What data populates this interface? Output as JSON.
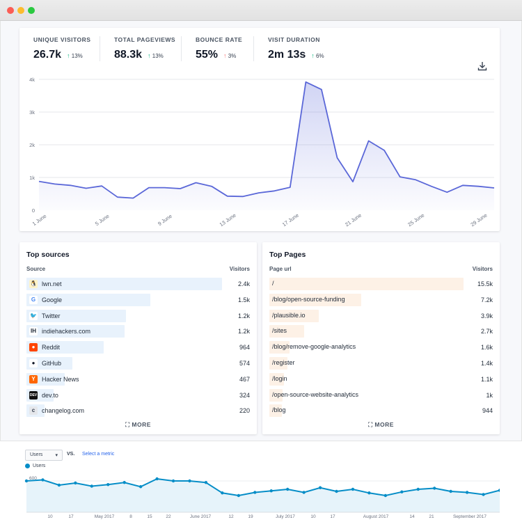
{
  "stats": [
    {
      "label": "UNIQUE VISITORS",
      "value": "26.7k",
      "change": "13%",
      "direction": "up",
      "color": "#10b981"
    },
    {
      "label": "TOTAL PAGEVIEWS",
      "value": "88.3k",
      "change": "13%",
      "direction": "up",
      "color": "#10b981"
    },
    {
      "label": "BOUNCE RATE",
      "value": "55%",
      "change": "3%",
      "direction": "up",
      "color": "#f87171"
    },
    {
      "label": "VISIT DURATION",
      "value": "2m 13s",
      "change": "6%",
      "direction": "up",
      "color": "#10b981"
    }
  ],
  "download_icon": "download-icon",
  "chart_data": [
    {
      "type": "area",
      "title": "",
      "xlabel": "",
      "ylabel": "",
      "ylim": [
        0,
        4000
      ],
      "yticks": [
        "0",
        "1k",
        "2k",
        "3k",
        "4k"
      ],
      "xticks": [
        "1 June",
        "5 June",
        "9 June",
        "13 June",
        "17 June",
        "21 June",
        "25 June",
        "29 June"
      ],
      "grid": true,
      "color": "#5a67d8",
      "x": [
        1,
        2,
        3,
        4,
        5,
        6,
        7,
        8,
        9,
        10,
        11,
        12,
        13,
        14,
        15,
        16,
        17,
        18,
        19,
        20,
        21,
        22,
        23,
        24,
        25,
        26,
        27,
        28,
        29,
        30
      ],
      "values": [
        880,
        800,
        760,
        670,
        740,
        400,
        370,
        690,
        690,
        660,
        840,
        730,
        430,
        420,
        530,
        590,
        700,
        3920,
        3690,
        1600,
        870,
        2120,
        1830,
        1020,
        930,
        730,
        550,
        760,
        730,
        680
      ]
    },
    {
      "type": "area",
      "title": "",
      "series_name": "Users",
      "ylim": [
        300,
        700
      ],
      "yticks": [
        "400",
        "600"
      ],
      "xticks": [
        "10",
        "17",
        "May 2017",
        "8",
        "15",
        "22",
        "June 2017",
        "12",
        "19",
        "July 2017",
        "10",
        "17",
        "August 2017",
        "14",
        "21",
        "September 2017"
      ],
      "color": "#058dc7",
      "values": [
        600,
        610,
        560,
        580,
        550,
        565,
        585,
        545,
        620,
        600,
        600,
        585,
        485,
        460,
        490,
        505,
        520,
        490,
        535,
        500,
        520,
        485,
        460,
        495,
        520,
        530,
        500,
        490,
        470,
        510
      ]
    }
  ],
  "top_sources": {
    "title": "Top sources",
    "col_source": "Source",
    "col_visitors": "Visitors",
    "more": "MORE",
    "items": [
      {
        "name": "lwn.net",
        "value": "2.4k",
        "fraction": 0.875,
        "icon": "penguin-icon"
      },
      {
        "name": "Google",
        "value": "1.5k",
        "fraction": 0.555,
        "icon": "google-icon"
      },
      {
        "name": "Twitter",
        "value": "1.2k",
        "fraction": 0.445,
        "icon": "twitter-icon"
      },
      {
        "name": "indiehackers.com",
        "value": "1.2k",
        "fraction": 0.44,
        "icon": "indiehackers-icon"
      },
      {
        "name": "Reddit",
        "value": "964",
        "fraction": 0.345,
        "icon": "reddit-icon"
      },
      {
        "name": "GitHub",
        "value": "574",
        "fraction": 0.205,
        "icon": "github-icon"
      },
      {
        "name": "Hacker News",
        "value": "467",
        "fraction": 0.17,
        "icon": "hackernews-icon"
      },
      {
        "name": "dev.to",
        "value": "324",
        "fraction": 0.12,
        "icon": "devto-icon"
      },
      {
        "name": "changelog.com",
        "value": "220",
        "fraction": 0.08,
        "icon": "changelog-icon"
      }
    ]
  },
  "top_pages": {
    "title": "Top Pages",
    "col_page": "Page url",
    "col_visitors": "Visitors",
    "more": "MORE",
    "items": [
      {
        "name": "/",
        "value": "15.5k",
        "fraction": 0.87
      },
      {
        "name": "/blog/open-source-funding",
        "value": "7.2k",
        "fraction": 0.41
      },
      {
        "name": "/plausible.io",
        "value": "3.9k",
        "fraction": 0.22
      },
      {
        "name": "/sites",
        "value": "2.7k",
        "fraction": 0.155
      },
      {
        "name": "/blog/remove-google-analytics",
        "value": "1.6k",
        "fraction": 0.09
      },
      {
        "name": "/register",
        "value": "1.4k",
        "fraction": 0.08
      },
      {
        "name": "/login",
        "value": "1.1k",
        "fraction": 0.065
      },
      {
        "name": "/open-source-website-analytics",
        "value": "1k",
        "fraction": 0.06
      },
      {
        "name": "/blog",
        "value": "944",
        "fraction": 0.055
      }
    ]
  },
  "ga": {
    "metric_select": "Users",
    "vs_label": "VS.",
    "select_metric": "Select a metric",
    "legend": "Users"
  }
}
